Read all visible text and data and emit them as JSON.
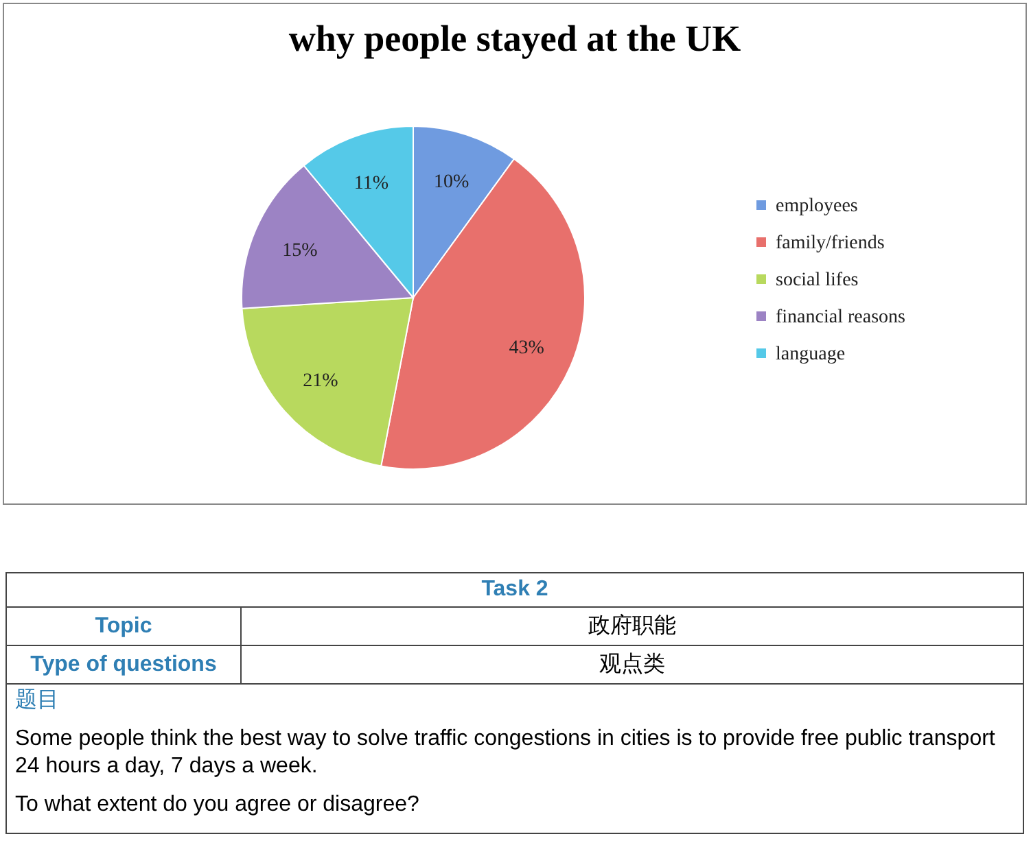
{
  "chart_data": {
    "type": "pie",
    "title": "why people stayed at the UK",
    "categories": [
      "employees",
      "family/friends",
      "social lifes",
      "financial reasons",
      "language"
    ],
    "values": [
      10,
      43,
      21,
      15,
      11
    ],
    "colors": [
      "#6f9be0",
      "#e8706c",
      "#b8d95e",
      "#9c83c4",
      "#55c9e8"
    ],
    "value_labels": [
      "10%",
      "43%",
      "21%",
      "15%",
      "11%"
    ],
    "legend": "right",
    "annotations": [
      "Task 2",
      "Topic",
      "政府职能",
      "Type of questions",
      "观点类",
      "题目",
      "Some people think the best way to solve traffic congestions in cities is to provide free public transport 24 hours a day, 7 days a week.",
      "To what extent do you agree or disagree?"
    ]
  }
}
